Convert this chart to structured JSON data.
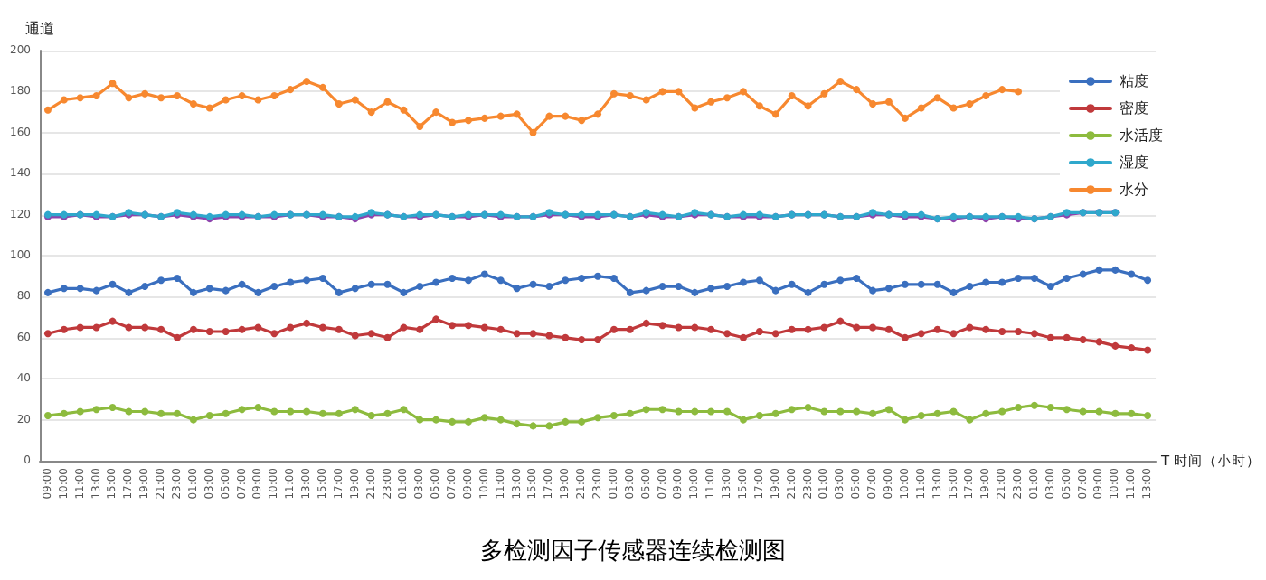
{
  "chart_data": {
    "type": "line",
    "title": "多检测因子传感器连续检测图",
    "xlabel": "T 时间（小时）",
    "ylabel": "通道",
    "categories": [
      "09:00",
      "10:00",
      "11:00",
      "13:00",
      "15:00",
      "17:00",
      "19:00",
      "21:00",
      "23:00",
      "01:00",
      "03:00",
      "05:00",
      "07:00",
      "09:00",
      "10:00",
      "11:00",
      "13:00",
      "15:00",
      "17:00",
      "19:00",
      "21:00",
      "23:00",
      "01:00",
      "03:00",
      "05:00",
      "07:00",
      "09:00",
      "10:00",
      "11:00",
      "13:00",
      "15:00",
      "17:00",
      "19:00",
      "21:00",
      "23:00",
      "01:00",
      "03:00",
      "05:00",
      "07:00",
      "09:00",
      "10:00",
      "11:00",
      "13:00",
      "15:00",
      "17:00",
      "19:00",
      "21:00",
      "23:00",
      "01:00",
      "03:00",
      "05:00",
      "07:00",
      "09:00",
      "10:00",
      "11:00",
      "13:00",
      "15:00",
      "17:00",
      "19:00",
      "21:00",
      "23:00",
      "01:00",
      "03:00",
      "05:00",
      "07:00",
      "09:00",
      "10:00",
      "11:00",
      "13:00"
    ],
    "series": [
      {
        "name": "粘度",
        "color": "#3a6fbf",
        "values": [
          82,
          84,
          84,
          83,
          86,
          82,
          85,
          88,
          89,
          82,
          84,
          83,
          86,
          82,
          85,
          87,
          88,
          89,
          82,
          84,
          86,
          86,
          82,
          85,
          87,
          89,
          88,
          91,
          88,
          84,
          86,
          85,
          88,
          89,
          90,
          89,
          82,
          83,
          85,
          85,
          82,
          84,
          85,
          87,
          88,
          83,
          86,
          82,
          86,
          88,
          89,
          83,
          84,
          86,
          86,
          86,
          82,
          85,
          87,
          87,
          89,
          89,
          85,
          89,
          91,
          93,
          93,
          91,
          88
        ]
      },
      {
        "name": "密度",
        "color": "#c0393b",
        "values": [
          62,
          64,
          65,
          65,
          68,
          65,
          65,
          64,
          60,
          64,
          63,
          63,
          64,
          65,
          62,
          65,
          67,
          65,
          64,
          61,
          62,
          60,
          65,
          64,
          69,
          66,
          66,
          65,
          64,
          62,
          62,
          61,
          60,
          59,
          59,
          64,
          64,
          67,
          66,
          65,
          65,
          64,
          62,
          60,
          63,
          62,
          64,
          64,
          65,
          68,
          65,
          65,
          64,
          60,
          62,
          64,
          62,
          65,
          64,
          63,
          63,
          62,
          60,
          60,
          59,
          58,
          56,
          55,
          54
        ]
      },
      {
        "name": "水活度",
        "color": "#8dbb3e",
        "values": [
          22,
          23,
          24,
          25,
          26,
          24,
          24,
          23,
          23,
          20,
          22,
          23,
          25,
          26,
          24,
          24,
          24,
          23,
          23,
          25,
          22,
          23,
          25,
          20,
          20,
          19,
          19,
          21,
          20,
          18,
          17,
          17,
          19,
          19,
          21,
          22,
          23,
          25,
          25,
          24,
          24,
          24,
          24,
          20,
          22,
          23,
          25,
          26,
          24,
          24,
          24,
          23,
          25,
          20,
          22,
          23,
          24,
          20,
          23,
          24,
          26,
          27,
          26,
          25,
          24,
          24,
          23,
          23,
          22
        ]
      },
      {
        "color": "#8e44ad",
        "values": [
          119,
          119,
          120,
          119,
          119,
          120,
          120,
          119,
          120,
          119,
          118,
          119,
          119,
          119,
          119,
          120,
          120,
          119,
          119,
          118,
          120,
          120,
          119,
          119,
          120,
          119,
          119,
          120,
          119,
          119,
          119,
          120,
          120,
          119,
          119,
          120,
          119,
          120,
          119,
          119,
          120,
          120,
          119,
          119,
          119,
          119,
          120,
          120,
          120,
          119,
          119,
          120,
          120,
          119,
          119,
          118,
          118,
          119,
          118,
          119,
          118,
          118,
          119,
          120,
          121,
          121,
          121,
          null,
          null
        ]
      },
      {
        "name": "湿度",
        "color": "#2fa8cc",
        "values": [
          120,
          120,
          120,
          120,
          119,
          121,
          120,
          119,
          121,
          120,
          119,
          120,
          120,
          119,
          120,
          120,
          120,
          120,
          119,
          119,
          121,
          120,
          119,
          120,
          120,
          119,
          120,
          120,
          120,
          119,
          119,
          121,
          120,
          120,
          120,
          120,
          119,
          121,
          120,
          119,
          121,
          120,
          119,
          120,
          120,
          119,
          120,
          120,
          120,
          119,
          119,
          121,
          120,
          120,
          120,
          118,
          119,
          119,
          119,
          119,
          119,
          118,
          119,
          121,
          121,
          121,
          121,
          null,
          null
        ]
      },
      {
        "name": "水分",
        "color": "#f7882f",
        "values": [
          171,
          176,
          177,
          178,
          184,
          177,
          179,
          177,
          178,
          174,
          172,
          176,
          178,
          176,
          178,
          181,
          185,
          182,
          174,
          176,
          170,
          175,
          171,
          163,
          170,
          165,
          166,
          167,
          168,
          169,
          160,
          168,
          168,
          166,
          169,
          179,
          178,
          176,
          180,
          180,
          172,
          175,
          177,
          180,
          173,
          169,
          178,
          173,
          179,
          185,
          181,
          174,
          175,
          167,
          172,
          177,
          172,
          174,
          178,
          181,
          180,
          null,
          null,
          null,
          null,
          null,
          null,
          null,
          null
        ]
      }
    ],
    "ylim": [
      0,
      200
    ],
    "yticks": [
      0,
      20,
      40,
      60,
      80,
      100,
      120,
      140,
      160,
      180,
      200
    ],
    "grid": "y",
    "legend": "top right",
    "marker": "circle",
    "line_style": "solid"
  }
}
